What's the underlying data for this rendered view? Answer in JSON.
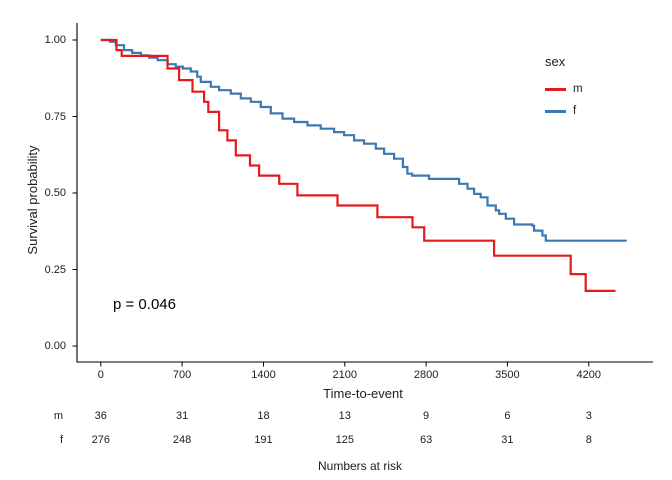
{
  "chart_data": {
    "type": "line",
    "subtype": "kaplan-meier-step",
    "title": "",
    "xlabel": "Time-to-event",
    "ylabel": "Survival probability",
    "xlim": [
      0,
      4790
    ],
    "ylim": [
      -0.05,
      1.05
    ],
    "grid": false,
    "x_ticks": [
      0,
      700,
      1400,
      2100,
      2800,
      3500,
      4200
    ],
    "x_tick_labels": [
      "0",
      "700",
      "1400",
      "2100",
      "2800",
      "3500",
      "4200"
    ],
    "y_ticks": [
      0.0,
      0.25,
      0.5,
      0.75,
      1.0
    ],
    "y_tick_labels": [
      "0.00",
      "0.25",
      "0.50",
      "0.75",
      "1.00"
    ],
    "annotation": "p = 0.046",
    "legend": {
      "title": "sex",
      "position": "right",
      "entries": [
        {
          "label": "m",
          "color": "#e41a1c"
        },
        {
          "label": "f",
          "color": "#3c79b0"
        }
      ]
    },
    "series": [
      {
        "name": "f",
        "color": "#3c79b0",
        "points": [
          [
            0,
            1.0
          ],
          [
            80,
            0.994
          ],
          [
            130,
            0.983
          ],
          [
            200,
            0.967
          ],
          [
            270,
            0.958
          ],
          [
            345,
            0.95
          ],
          [
            415,
            0.942
          ],
          [
            490,
            0.934
          ],
          [
            575,
            0.921
          ],
          [
            645,
            0.913
          ],
          [
            705,
            0.907
          ],
          [
            775,
            0.897
          ],
          [
            830,
            0.88
          ],
          [
            861,
            0.863
          ],
          [
            947,
            0.847
          ],
          [
            1018,
            0.836
          ],
          [
            1119,
            0.825
          ],
          [
            1205,
            0.809
          ],
          [
            1291,
            0.798
          ],
          [
            1377,
            0.781
          ],
          [
            1463,
            0.76
          ],
          [
            1564,
            0.743
          ],
          [
            1664,
            0.732
          ],
          [
            1779,
            0.721
          ],
          [
            1893,
            0.71
          ],
          [
            2008,
            0.699
          ],
          [
            2094,
            0.689
          ],
          [
            2180,
            0.672
          ],
          [
            2266,
            0.661
          ],
          [
            2367,
            0.645
          ],
          [
            2438,
            0.628
          ],
          [
            2524,
            0.612
          ],
          [
            2600,
            0.585
          ],
          [
            2639,
            0.563
          ],
          [
            2680,
            0.557
          ],
          [
            2825,
            0.546
          ],
          [
            3084,
            0.53
          ],
          [
            3156,
            0.514
          ],
          [
            3213,
            0.497
          ],
          [
            3270,
            0.486
          ],
          [
            3328,
            0.459
          ],
          [
            3400,
            0.443
          ],
          [
            3428,
            0.432
          ],
          [
            3486,
            0.416
          ],
          [
            3557,
            0.397
          ],
          [
            3715,
            0.393
          ],
          [
            3729,
            0.377
          ],
          [
            3801,
            0.361
          ],
          [
            3830,
            0.344
          ],
          [
            4527,
            0.344
          ]
        ]
      },
      {
        "name": "m",
        "color": "#e41a1c",
        "points": [
          [
            0,
            1.0
          ],
          [
            135,
            0.967
          ],
          [
            180,
            0.948
          ],
          [
            574,
            0.907
          ],
          [
            674,
            0.869
          ],
          [
            789,
            0.831
          ],
          [
            889,
            0.798
          ],
          [
            925,
            0.765
          ],
          [
            1018,
            0.705
          ],
          [
            1090,
            0.672
          ],
          [
            1162,
            0.623
          ],
          [
            1284,
            0.59
          ],
          [
            1362,
            0.557
          ],
          [
            1535,
            0.53
          ],
          [
            1692,
            0.492
          ],
          [
            2037,
            0.459
          ],
          [
            2381,
            0.421
          ],
          [
            2683,
            0.388
          ],
          [
            2783,
            0.344
          ],
          [
            3385,
            0.295
          ],
          [
            4044,
            0.235
          ],
          [
            4173,
            0.18
          ],
          [
            4430,
            0.18
          ]
        ]
      }
    ],
    "risk_table": {
      "caption": "Numbers at risk",
      "time_points": [
        0,
        700,
        1400,
        2100,
        2800,
        3500,
        4200
      ],
      "rows": [
        {
          "label": "m",
          "values": [
            "36",
            "31",
            "18",
            "13",
            "9",
            "6",
            "3"
          ]
        },
        {
          "label": "f",
          "values": [
            "276",
            "248",
            "191",
            "125",
            "63",
            "31",
            "8"
          ]
        }
      ]
    }
  }
}
